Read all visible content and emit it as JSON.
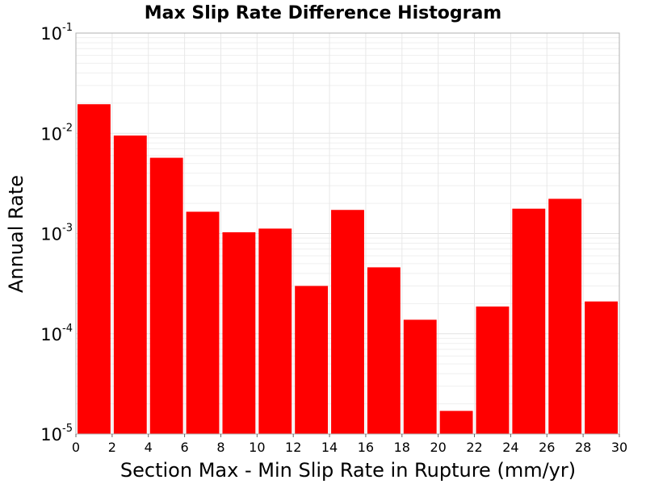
{
  "chart_data": {
    "type": "bar",
    "title": "Max Slip Rate Difference Histogram",
    "xlabel": "Section Max - Min Slip Rate in Rupture (mm/yr)",
    "ylabel": "Annual Rate",
    "yscale": "log",
    "xlim": [
      0,
      30
    ],
    "ylim": [
      1e-05,
      0.1
    ],
    "grid": true,
    "bar_color": "#ff0000",
    "x_ticks": [
      "0",
      "2",
      "4",
      "6",
      "8",
      "10",
      "12",
      "14",
      "16",
      "18",
      "20",
      "22",
      "24",
      "26",
      "28",
      "30"
    ],
    "y_ticks": [
      {
        "base": "10",
        "exp": "-5",
        "value": 1e-05
      },
      {
        "base": "10",
        "exp": "-4",
        "value": 0.0001
      },
      {
        "base": "10",
        "exp": "-3",
        "value": 0.001
      },
      {
        "base": "10",
        "exp": "-2",
        "value": 0.01
      },
      {
        "base": "10",
        "exp": "-1",
        "value": 0.1
      }
    ],
    "bins": [
      {
        "x0": 0,
        "x1": 2,
        "value": 0.0195
      },
      {
        "x0": 2,
        "x1": 4,
        "value": 0.0095
      },
      {
        "x0": 4,
        "x1": 6,
        "value": 0.0057
      },
      {
        "x0": 6,
        "x1": 8,
        "value": 0.00165
      },
      {
        "x0": 8,
        "x1": 10,
        "value": 0.00103
      },
      {
        "x0": 10,
        "x1": 12,
        "value": 0.00112
      },
      {
        "x0": 12,
        "x1": 14,
        "value": 0.0003
      },
      {
        "x0": 14,
        "x1": 16,
        "value": 0.00172
      },
      {
        "x0": 16,
        "x1": 18,
        "value": 0.00046
      },
      {
        "x0": 18,
        "x1": 20,
        "value": 0.000138
      },
      {
        "x0": 20,
        "x1": 22,
        "value": 1.7e-05
      },
      {
        "x0": 22,
        "x1": 24,
        "value": 0.000187
      },
      {
        "x0": 24,
        "x1": 26,
        "value": 0.00177
      },
      {
        "x0": 26,
        "x1": 28,
        "value": 0.00222
      },
      {
        "x0": 28,
        "x1": 30,
        "value": 0.00021
      }
    ]
  }
}
